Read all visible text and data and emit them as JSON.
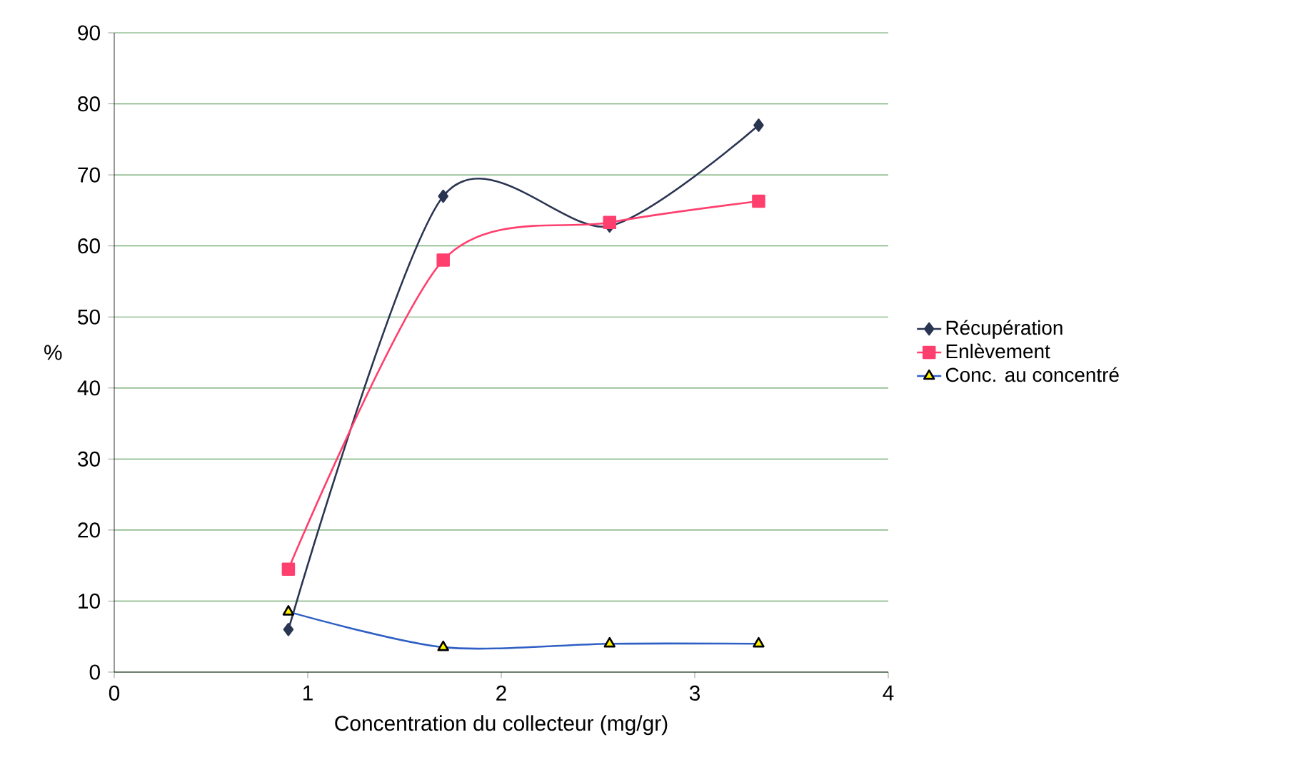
{
  "chart_data": {
    "type": "line",
    "xlabel": "Concentration du collecteur (mg/gr)",
    "ylabel": "%",
    "xlim": [
      0,
      4
    ],
    "ylim": [
      0,
      90
    ],
    "xticks": [
      0,
      1,
      2,
      3,
      4
    ],
    "yticks": [
      0,
      10,
      20,
      30,
      40,
      50,
      60,
      70,
      80,
      90
    ],
    "grid": "y",
    "legend": "right",
    "x": [
      0.9,
      1.7,
      2.56,
      3.33
    ],
    "series": [
      {
        "name": "Récupération",
        "color": "#2a3552",
        "marker": "diamond",
        "values": [
          6,
          67,
          62.8,
          77
        ]
      },
      {
        "name": "Enlèvement",
        "color": "#ff3f6e",
        "marker": "square",
        "values": [
          14.5,
          58,
          63.3,
          66.3
        ]
      },
      {
        "name": "Conc. au concentré",
        "color": "#2f5fc4",
        "marker": "triangle",
        "values": [
          8.5,
          3.5,
          4,
          4
        ]
      }
    ]
  }
}
